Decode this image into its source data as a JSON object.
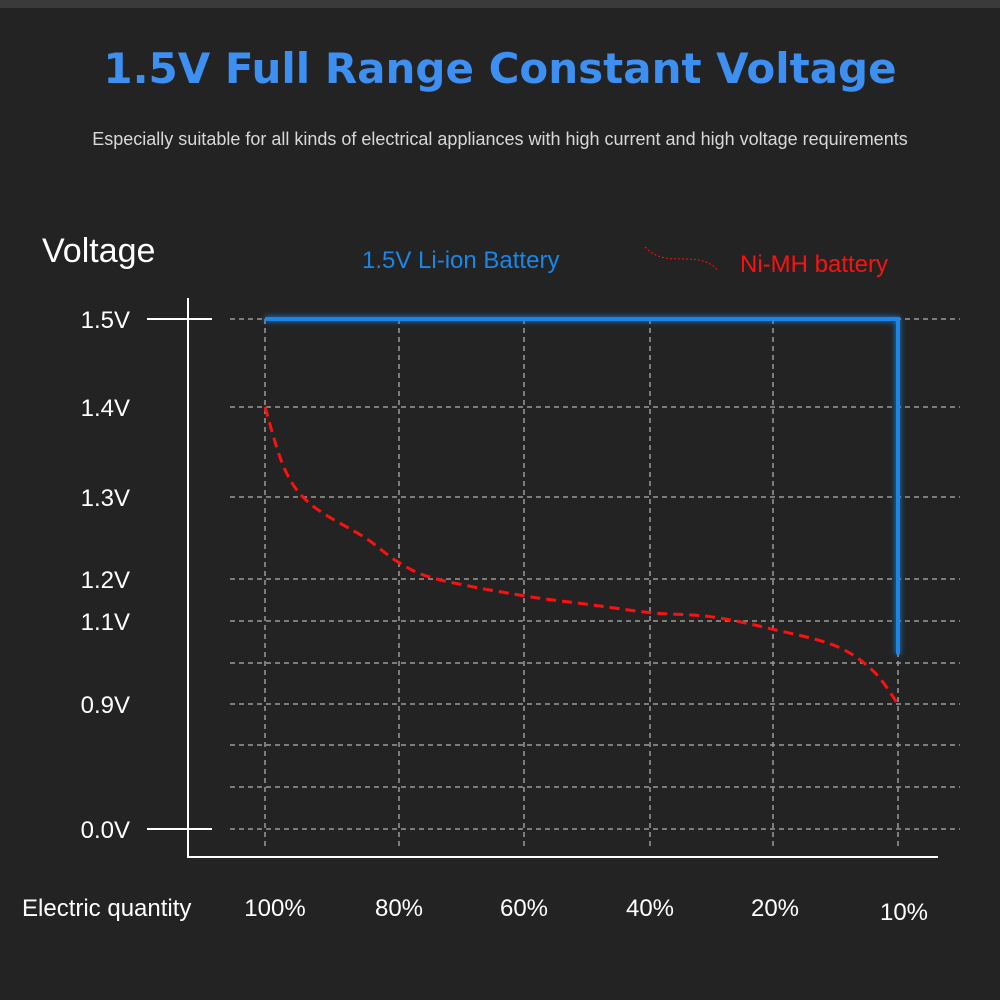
{
  "title": "1.5V Full Range Constant Voltage",
  "subtitle": "Especially suitable for all kinds of electrical appliances with high current and high voltage requirements",
  "colors": {
    "liion": "#1a86e8",
    "nimh": "#ff1010",
    "title": "#3d8ff2",
    "grid": "#9a9a9a"
  },
  "chart_data": {
    "type": "line",
    "ylabel": "Voltage",
    "xlabel": "Electric quantity",
    "x_ticks": [
      "100%",
      "80%",
      "60%",
      "40%",
      "20%",
      "10%"
    ],
    "x_tick_values": [
      100,
      80,
      60,
      40,
      20,
      10
    ],
    "y_ticks": [
      "1.5V",
      "1.4V",
      "1.3V",
      "1.2V",
      "1.1V",
      "0.9V",
      "0.0V"
    ],
    "y_tick_values": [
      1.5,
      1.4,
      1.3,
      1.2,
      1.1,
      0.9,
      0.0
    ],
    "grid": true,
    "legend_position": "top",
    "series": [
      {
        "name": "1.5V Li-ion Battery",
        "style": "solid",
        "points": [
          [
            100,
            1.5
          ],
          [
            10,
            1.5
          ],
          [
            10,
            1.02
          ]
        ]
      },
      {
        "name": "Ni-MH battery",
        "style": "dashed",
        "points": [
          [
            100,
            1.4
          ],
          [
            97,
            1.33
          ],
          [
            93,
            1.29
          ],
          [
            85,
            1.25
          ],
          [
            80,
            1.22
          ],
          [
            74,
            1.2
          ],
          [
            60,
            1.16
          ],
          [
            50,
            1.14
          ],
          [
            40,
            1.12
          ],
          [
            30,
            1.11
          ],
          [
            20,
            1.08
          ],
          [
            15,
            1.04
          ],
          [
            12,
            0.98
          ],
          [
            10,
            0.9
          ]
        ]
      }
    ]
  }
}
